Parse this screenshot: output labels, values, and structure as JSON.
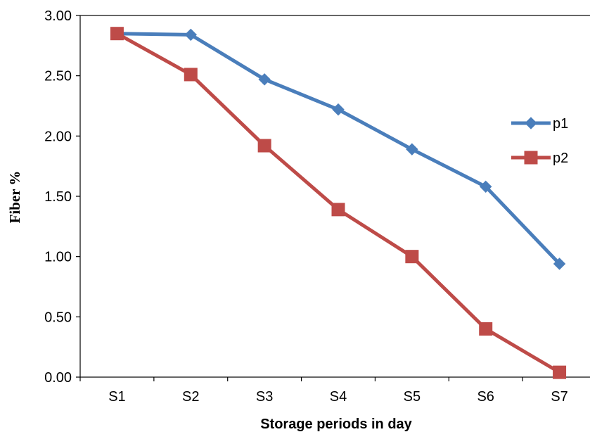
{
  "chart_data": {
    "type": "line",
    "categories": [
      "S1",
      "S2",
      "S3",
      "S4",
      "S5",
      "S6",
      "S7"
    ],
    "series": [
      {
        "name": "p1",
        "values": [
          2.85,
          2.84,
          2.47,
          2.22,
          1.89,
          1.58,
          0.94
        ],
        "color": "#4a7ebb",
        "marker": "diamond"
      },
      {
        "name": "p2",
        "values": [
          2.85,
          2.51,
          1.92,
          1.39,
          1.0,
          0.4,
          0.04
        ],
        "color": "#be4b48",
        "marker": "square"
      }
    ],
    "xlabel": "Storage periods in day",
    "ylabel": "Fiber %",
    "ylim": [
      0,
      3
    ],
    "yticks": [
      "0.00",
      "0.50",
      "1.00",
      "1.50",
      "2.00",
      "2.50",
      "3.00"
    ],
    "ytick_values": [
      0,
      0.5,
      1.0,
      1.5,
      2.0,
      2.5,
      3.0
    ],
    "grid": false,
    "legend_position": "right"
  }
}
